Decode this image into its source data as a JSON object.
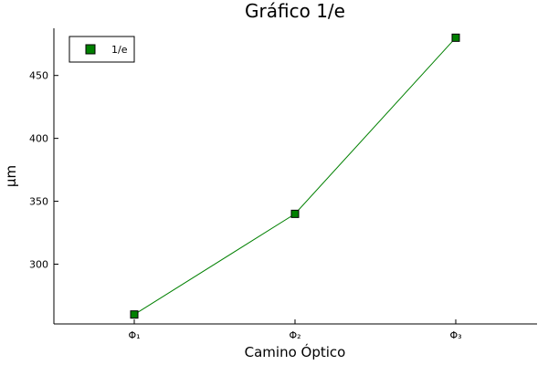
{
  "chart_data": {
    "type": "line",
    "title": "Gráfico 1/e",
    "xlabel": "Camino Óptico",
    "ylabel": "µm",
    "categories": [
      "Φ₁",
      "Φ₂",
      "Φ₃"
    ],
    "series": [
      {
        "name": "1/e",
        "values": [
          260,
          340,
          480
        ],
        "color": "#008000",
        "marker": "square"
      }
    ],
    "ylim": [
      252.5,
      487.5
    ],
    "yticks": [
      300,
      350,
      400,
      450
    ],
    "grid": false,
    "legend": "top-left"
  }
}
